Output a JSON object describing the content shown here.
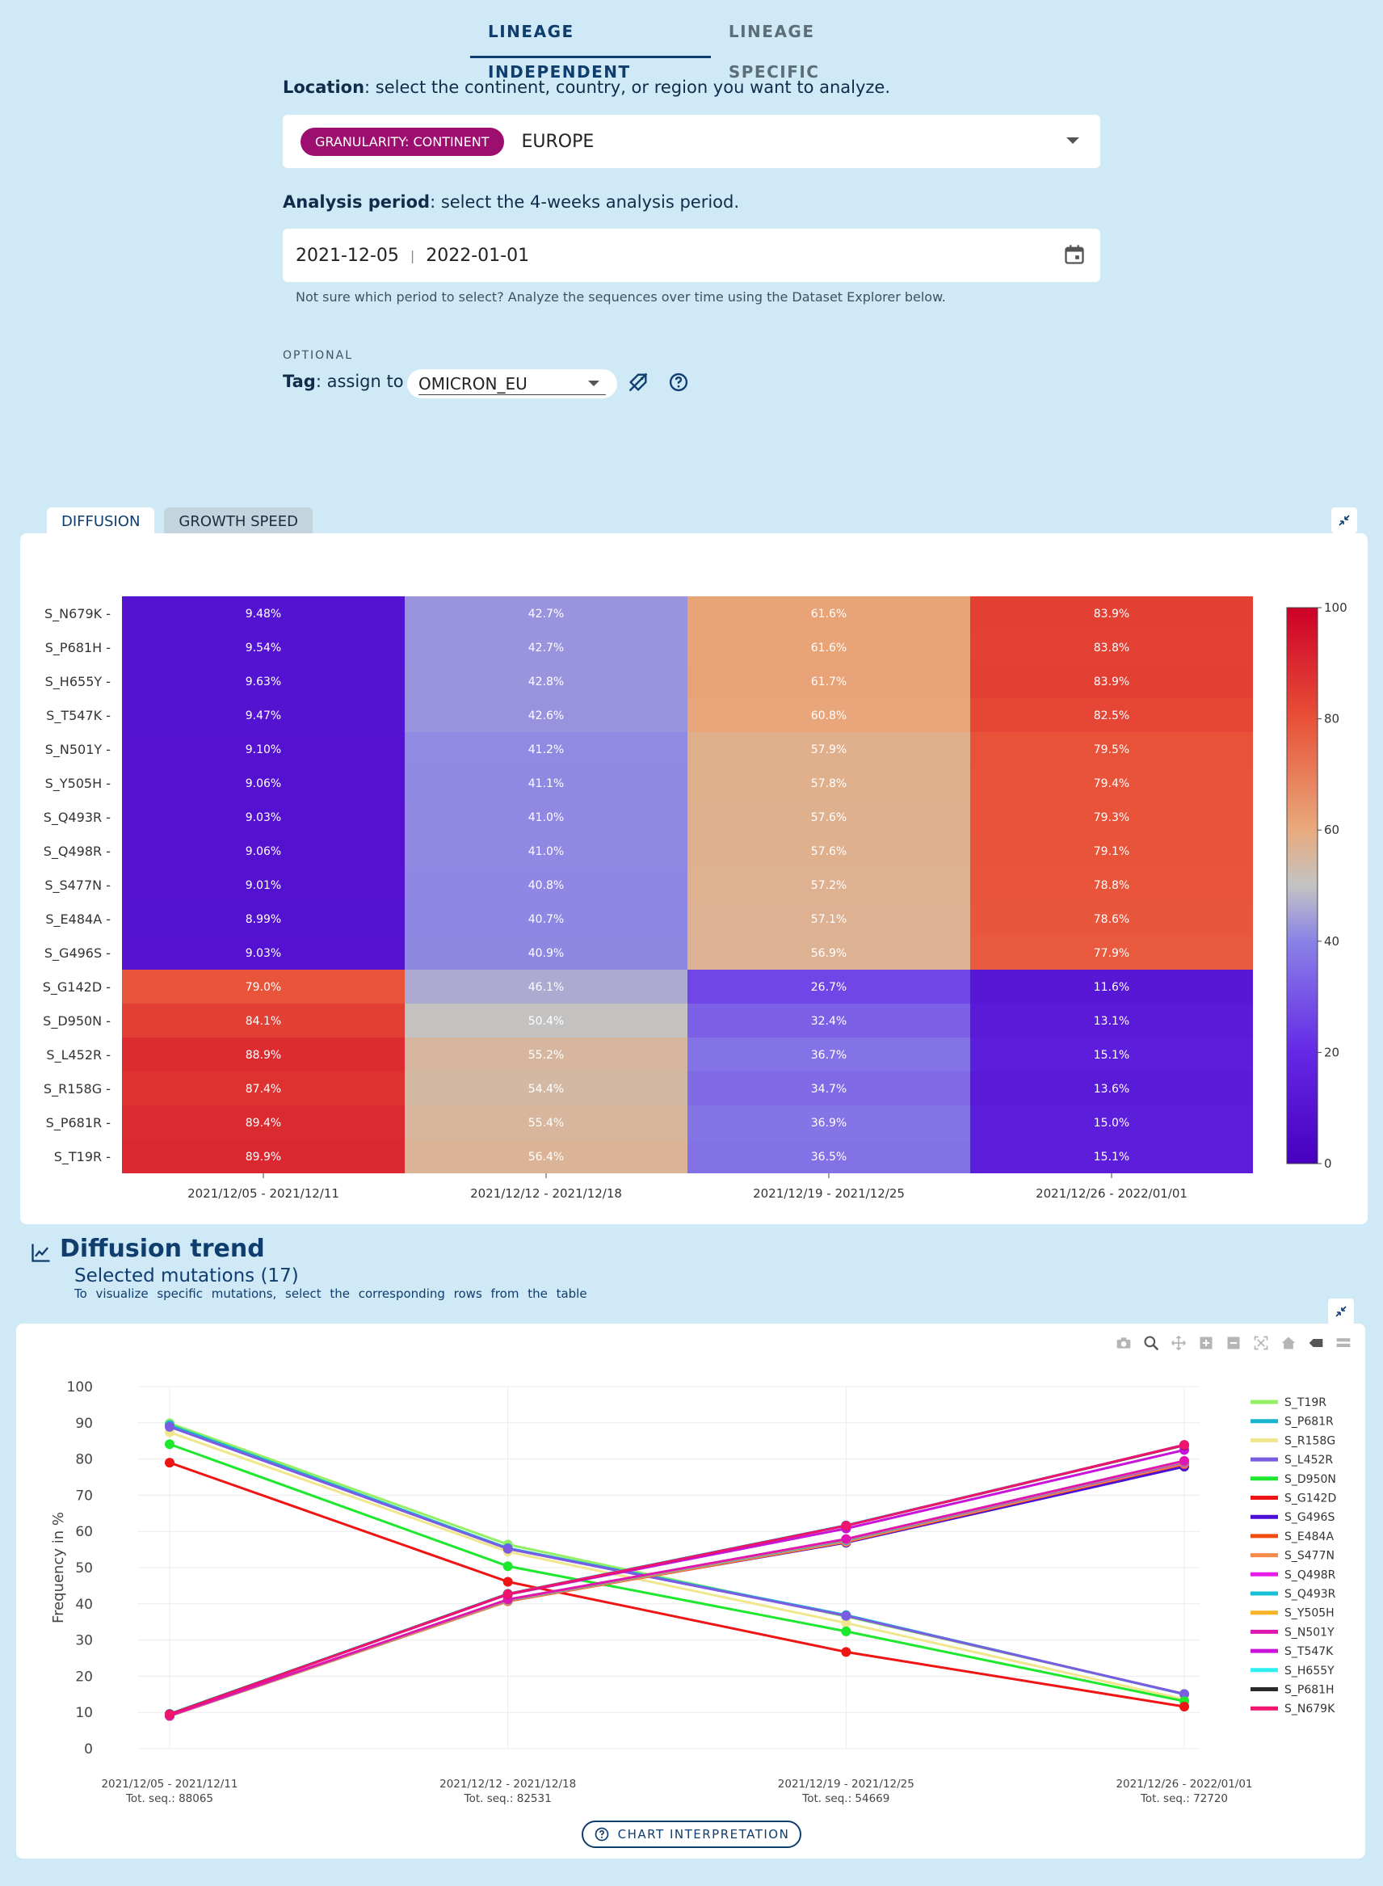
{
  "top_tabs": [
    {
      "label": "LINEAGE INDEPENDENT",
      "active": true
    },
    {
      "label": "LINEAGE SPECIFIC",
      "active": false
    }
  ],
  "location": {
    "label_bold": "Location",
    "label_rest": ": select the continent, country, or region you want to analyze.",
    "chip": "GRANULARITY: CONTINENT",
    "value": "EUROPE"
  },
  "period": {
    "label_bold": "Analysis period",
    "label_rest": ": select the 4-weeks analysis period.",
    "start": "2021-12-05",
    "end": "2022-01-01",
    "hint": "Not sure which period to select? Analyze the sequences over time using the Dataset Explorer below."
  },
  "tag": {
    "optional": "OPTIONAL",
    "label_bold": "Tag",
    "label_rest": ": assign to",
    "value": "OMICRON_EU"
  },
  "heatmap_tabs": [
    {
      "label": "DIFFUSION",
      "active": true
    },
    {
      "label": "GROWTH SPEED",
      "active": false
    }
  ],
  "trend": {
    "title": "Diffusion trend",
    "subtitle": "Selected mutations (17)",
    "hint": "To visualize specific mutations, select the corresponding rows from the table",
    "button": "CHART INTERPRETATION"
  },
  "chart_data": [
    {
      "type": "heatmap",
      "columns": [
        "2021/12/05 - 2021/12/11",
        "2021/12/12 - 2021/12/18",
        "2021/12/19 - 2021/12/25",
        "2021/12/26 - 2022/01/01"
      ],
      "rows": [
        "S_N679K",
        "S_P681H",
        "S_H655Y",
        "S_T547K",
        "S_N501Y",
        "S_Y505H",
        "S_Q493R",
        "S_Q498R",
        "S_S477N",
        "S_E484A",
        "S_G496S",
        "S_G142D",
        "S_D950N",
        "S_L452R",
        "S_R158G",
        "S_P681R",
        "S_T19R"
      ],
      "values": [
        [
          9.48,
          42.7,
          61.6,
          83.9
        ],
        [
          9.54,
          42.7,
          61.6,
          83.8
        ],
        [
          9.63,
          42.8,
          61.7,
          83.9
        ],
        [
          9.47,
          42.6,
          60.8,
          82.5
        ],
        [
          9.1,
          41.2,
          57.9,
          79.5
        ],
        [
          9.06,
          41.1,
          57.8,
          79.4
        ],
        [
          9.03,
          41.0,
          57.6,
          79.3
        ],
        [
          9.06,
          41.0,
          57.6,
          79.1
        ],
        [
          9.01,
          40.8,
          57.2,
          78.8
        ],
        [
          8.99,
          40.7,
          57.1,
          78.6
        ],
        [
          9.03,
          40.9,
          56.9,
          77.9
        ],
        [
          79.0,
          46.1,
          26.7,
          11.6
        ],
        [
          84.1,
          50.4,
          32.4,
          13.1
        ],
        [
          88.9,
          55.2,
          36.7,
          15.1
        ],
        [
          87.4,
          54.4,
          34.7,
          13.6
        ],
        [
          89.4,
          55.4,
          36.9,
          15.0
        ],
        [
          89.9,
          56.4,
          36.5,
          15.1
        ]
      ],
      "cell_labels": [
        [
          "9.48%",
          "42.7%",
          "61.6%",
          "83.9%"
        ],
        [
          "9.54%",
          "42.7%",
          "61.6%",
          "83.8%"
        ],
        [
          "9.63%",
          "42.8%",
          "61.7%",
          "83.9%"
        ],
        [
          "9.47%",
          "42.6%",
          "60.8%",
          "82.5%"
        ],
        [
          "9.10%",
          "41.2%",
          "57.9%",
          "79.5%"
        ],
        [
          "9.06%",
          "41.1%",
          "57.8%",
          "79.4%"
        ],
        [
          "9.03%",
          "41.0%",
          "57.6%",
          "79.3%"
        ],
        [
          "9.06%",
          "41.0%",
          "57.6%",
          "79.1%"
        ],
        [
          "9.01%",
          "40.8%",
          "57.2%",
          "78.8%"
        ],
        [
          "8.99%",
          "40.7%",
          "57.1%",
          "78.6%"
        ],
        [
          "9.03%",
          "40.9%",
          "56.9%",
          "77.9%"
        ],
        [
          "79.0%",
          "46.1%",
          "26.7%",
          "11.6%"
        ],
        [
          "84.1%",
          "50.4%",
          "32.4%",
          "13.1%"
        ],
        [
          "88.9%",
          "55.2%",
          "36.7%",
          "15.1%"
        ],
        [
          "87.4%",
          "54.4%",
          "34.7%",
          "13.6%"
        ],
        [
          "89.4%",
          "55.4%",
          "36.9%",
          "15.0%"
        ],
        [
          "89.9%",
          "56.4%",
          "36.5%",
          "15.1%"
        ]
      ],
      "colorscale": {
        "range": [
          0,
          100
        ],
        "ticks": [
          0,
          20,
          40,
          60,
          80,
          100
        ]
      }
    },
    {
      "type": "line",
      "x": [
        "2021/12/05 - 2021/12/11",
        "2021/12/12 - 2021/12/18",
        "2021/12/19 - 2021/12/25",
        "2021/12/26 - 2022/01/01"
      ],
      "x_sublabels": [
        "Tot. seq.: 88065",
        "Tot. seq.: 82531",
        "Tot. seq.: 54669",
        "Tot. seq.: 72720"
      ],
      "ylabel": "Frequency in %",
      "ylim": [
        0,
        100
      ],
      "yticks": [
        0,
        10,
        20,
        30,
        40,
        50,
        60,
        70,
        80,
        90,
        100
      ],
      "legend": "right",
      "series": [
        {
          "name": "S_T19R",
          "color": "#93f062",
          "values": [
            89.9,
            56.4,
            36.5,
            15.1
          ]
        },
        {
          "name": "S_P681R",
          "color": "#17b3cf",
          "values": [
            89.4,
            55.4,
            36.9,
            15.0
          ]
        },
        {
          "name": "S_R158G",
          "color": "#f0e68c",
          "values": [
            87.4,
            54.4,
            34.7,
            13.6
          ]
        },
        {
          "name": "S_L452R",
          "color": "#7b5be0",
          "values": [
            88.9,
            55.2,
            36.7,
            15.1
          ]
        },
        {
          "name": "S_D950N",
          "color": "#1ee82e",
          "values": [
            84.1,
            50.4,
            32.4,
            13.1
          ]
        },
        {
          "name": "S_G142D",
          "color": "#f01515",
          "values": [
            79.0,
            46.1,
            26.7,
            11.6
          ]
        },
        {
          "name": "S_G496S",
          "color": "#4b0fd6",
          "values": [
            9.03,
            40.9,
            56.9,
            77.9
          ]
        },
        {
          "name": "S_E484A",
          "color": "#f24b10",
          "values": [
            8.99,
            40.7,
            57.1,
            78.6
          ]
        },
        {
          "name": "S_S477N",
          "color": "#f58a4b",
          "values": [
            9.01,
            40.8,
            57.2,
            78.8
          ]
        },
        {
          "name": "S_Q498R",
          "color": "#e81ce8",
          "values": [
            9.06,
            41.0,
            57.6,
            79.1
          ]
        },
        {
          "name": "S_Q493R",
          "color": "#17bfd6",
          "values": [
            9.03,
            41.0,
            57.6,
            79.3
          ]
        },
        {
          "name": "S_Y505H",
          "color": "#f5b428",
          "values": [
            9.06,
            41.1,
            57.8,
            79.4
          ]
        },
        {
          "name": "S_N501Y",
          "color": "#e016b0",
          "values": [
            9.1,
            41.2,
            57.9,
            79.5
          ]
        },
        {
          "name": "S_T547K",
          "color": "#c714d8",
          "values": [
            9.47,
            42.6,
            60.8,
            82.5
          ]
        },
        {
          "name": "S_H655Y",
          "color": "#2ef0f0",
          "values": [
            9.63,
            42.8,
            61.7,
            83.9
          ]
        },
        {
          "name": "S_P681H",
          "color": "#2a2a2a",
          "values": [
            9.54,
            42.7,
            61.6,
            83.8
          ]
        },
        {
          "name": "S_N679K",
          "color": "#f0146e",
          "values": [
            9.48,
            42.7,
            61.6,
            83.9
          ]
        }
      ]
    }
  ]
}
